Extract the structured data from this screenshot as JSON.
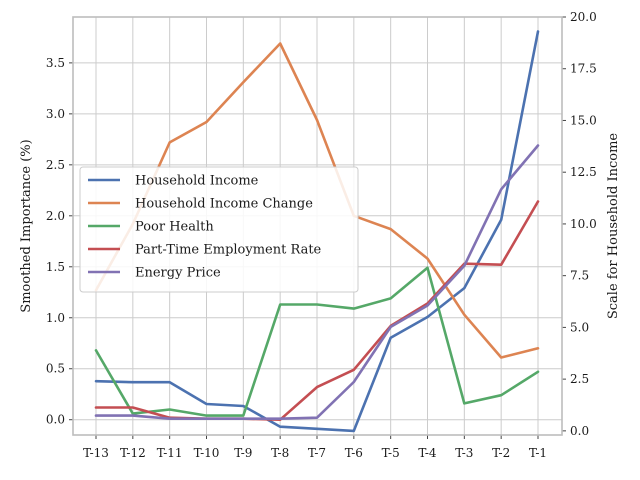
{
  "chart_data": {
    "type": "line",
    "categories": [
      "T-13",
      "T-12",
      "T-11",
      "T-10",
      "T-9",
      "T-8",
      "T-7",
      "T-6",
      "T-5",
      "T-4",
      "T-3",
      "T-2",
      "T-1"
    ],
    "ylabel": "Smoothed Importance (%)",
    "ylabel_right": "Scale for Household Income",
    "ylim": [
      -0.15,
      3.95
    ],
    "ylim_right": [
      -0.2,
      20.0
    ],
    "yticks": [
      "0.0",
      "0.5",
      "1.0",
      "1.5",
      "2.0",
      "2.5",
      "3.0",
      "3.5"
    ],
    "yticks_right": [
      "0.0",
      "2.5",
      "5.0",
      "7.5",
      "10.0",
      "12.5",
      "15.0",
      "17.5",
      "20.0"
    ],
    "grid": true,
    "legend_position": "center-left",
    "series": [
      {
        "name": "Household Income",
        "color": "#4c72b0",
        "axis": "right",
        "values": [
          2.4,
          2.35,
          2.35,
          1.3,
          1.2,
          0.2,
          0.1,
          0.0,
          4.5,
          5.5,
          6.9,
          10.2,
          19.3
        ]
      },
      {
        "name": "Household Income Change",
        "color": "#dd8452",
        "axis": "left",
        "values": [
          1.27,
          1.92,
          2.72,
          2.92,
          3.31,
          3.69,
          2.94,
          2.0,
          1.87,
          1.58,
          1.03,
          0.61,
          0.7
        ]
      },
      {
        "name": "Poor Health",
        "color": "#55a868",
        "axis": "left",
        "values": [
          0.68,
          0.06,
          0.1,
          0.04,
          0.04,
          1.13,
          1.13,
          1.09,
          1.19,
          1.49,
          0.16,
          0.24,
          0.47
        ]
      },
      {
        "name": "Part-Time Employment Rate",
        "color": "#c44e52",
        "axis": "left",
        "values": [
          0.12,
          0.12,
          0.02,
          0.01,
          0.01,
          0.0,
          0.32,
          0.49,
          0.92,
          1.14,
          1.53,
          1.52,
          2.14
        ]
      },
      {
        "name": "Energy Price",
        "color": "#8172b3",
        "axis": "left",
        "values": [
          0.04,
          0.04,
          0.01,
          0.01,
          0.01,
          0.01,
          0.02,
          0.37,
          0.91,
          1.12,
          1.51,
          2.26,
          2.69
        ]
      }
    ]
  }
}
